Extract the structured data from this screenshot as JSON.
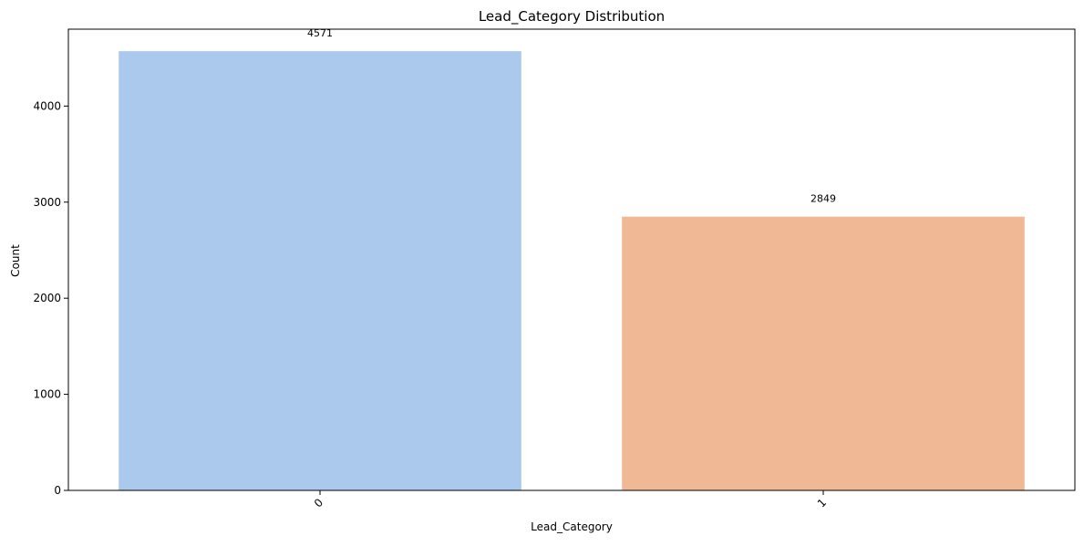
{
  "chart_data": {
    "type": "bar",
    "title": "Lead_Category Distribution",
    "xlabel": "Lead_Category",
    "ylabel": "Count",
    "categories": [
      "0",
      "1"
    ],
    "values": [
      4571,
      2849
    ],
    "data_labels": [
      "4571",
      "2849"
    ],
    "ylim": [
      0,
      4800
    ],
    "yticks": [
      0,
      1000,
      2000,
      3000,
      4000
    ],
    "ytick_labels": [
      "0",
      "1000",
      "2000",
      "3000",
      "4000"
    ],
    "colors": [
      "#abc9ec",
      "#f0b894"
    ],
    "grid": false,
    "legend": "none"
  }
}
